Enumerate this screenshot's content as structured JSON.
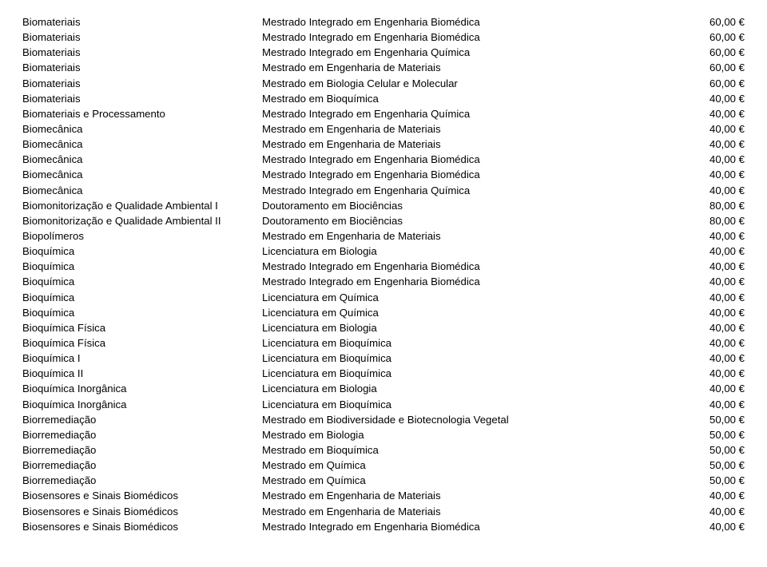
{
  "rows": [
    {
      "c1": "Biomateriais",
      "c2": "Mestrado Integrado em Engenharia Biomédica",
      "c3": "60,00 €"
    },
    {
      "c1": "Biomateriais",
      "c2": "Mestrado Integrado em Engenharia Biomédica",
      "c3": "60,00 €"
    },
    {
      "c1": "Biomateriais",
      "c2": "Mestrado Integrado em Engenharia Química",
      "c3": "60,00 €"
    },
    {
      "c1": "Biomateriais",
      "c2": "Mestrado em Engenharia de Materiais",
      "c3": "60,00 €"
    },
    {
      "c1": "Biomateriais",
      "c2": "Mestrado em Biologia Celular e Molecular",
      "c3": "60,00 €"
    },
    {
      "c1": "Biomateriais",
      "c2": "Mestrado em Bioquímica",
      "c3": "40,00 €"
    },
    {
      "c1": "Biomateriais e Processamento",
      "c2": "Mestrado Integrado em Engenharia Química",
      "c3": "40,00 €"
    },
    {
      "c1": "Biomecânica",
      "c2": "Mestrado em Engenharia de Materiais",
      "c3": "40,00 €"
    },
    {
      "c1": "Biomecânica",
      "c2": "Mestrado em Engenharia de Materiais",
      "c3": "40,00 €"
    },
    {
      "c1": "Biomecânica",
      "c2": "Mestrado Integrado em Engenharia Biomédica",
      "c3": "40,00 €"
    },
    {
      "c1": "Biomecânica",
      "c2": "Mestrado Integrado em Engenharia Biomédica",
      "c3": "40,00 €"
    },
    {
      "c1": "Biomecânica",
      "c2": "Mestrado Integrado em Engenharia Química",
      "c3": "40,00 €"
    },
    {
      "c1": "Biomonitorização e Qualidade Ambiental I",
      "c2": "Doutoramento em Biociências",
      "c3": "80,00 €"
    },
    {
      "c1": "Biomonitorização e Qualidade Ambiental II",
      "c2": "Doutoramento em Biociências",
      "c3": "80,00 €"
    },
    {
      "c1": "Biopolímeros",
      "c2": "Mestrado em Engenharia de Materiais",
      "c3": "40,00 €"
    },
    {
      "c1": "Bioquímica",
      "c2": "Licenciatura em Biologia",
      "c3": "40,00 €"
    },
    {
      "c1": "Bioquímica",
      "c2": "Mestrado Integrado em Engenharia Biomédica",
      "c3": "40,00 €"
    },
    {
      "c1": "Bioquímica",
      "c2": "Mestrado Integrado em Engenharia Biomédica",
      "c3": "40,00 €"
    },
    {
      "c1": "Bioquímica",
      "c2": "Licenciatura em Química",
      "c3": "40,00 €"
    },
    {
      "c1": "Bioquímica",
      "c2": "Licenciatura em Química",
      "c3": "40,00 €"
    },
    {
      "c1": "Bioquímica Física",
      "c2": "Licenciatura em Biologia",
      "c3": "40,00 €"
    },
    {
      "c1": "Bioquímica Física",
      "c2": "Licenciatura em Bioquímica",
      "c3": "40,00 €"
    },
    {
      "c1": "Bioquímica I",
      "c2": "Licenciatura em Bioquímica",
      "c3": "40,00 €"
    },
    {
      "c1": "Bioquímica II",
      "c2": "Licenciatura em Bioquímica",
      "c3": "40,00 €"
    },
    {
      "c1": "Bioquímica Inorgânica",
      "c2": "Licenciatura em Biologia",
      "c3": "40,00 €"
    },
    {
      "c1": "Bioquímica Inorgânica",
      "c2": "Licenciatura em Bioquímica",
      "c3": "40,00 €"
    },
    {
      "c1": "Biorremediação",
      "c2": "Mestrado em Biodiversidade e Biotecnologia Vegetal",
      "c3": "50,00 €"
    },
    {
      "c1": "Biorremediação",
      "c2": "Mestrado em Biologia",
      "c3": "50,00 €"
    },
    {
      "c1": "Biorremediação",
      "c2": "Mestrado em Bioquímica",
      "c3": "50,00 €"
    },
    {
      "c1": "Biorremediação",
      "c2": "Mestrado em Química",
      "c3": "50,00 €"
    },
    {
      "c1": "Biorremediação",
      "c2": "Mestrado em Química",
      "c3": "50,00 €"
    },
    {
      "c1": "Biosensores e Sinais Biomédicos",
      "c2": "Mestrado em Engenharia de Materiais",
      "c3": "40,00 €"
    },
    {
      "c1": "Biosensores e Sinais Biomédicos",
      "c2": "Mestrado em Engenharia de Materiais",
      "c3": "40,00 €"
    },
    {
      "c1": "Biosensores e Sinais Biomédicos",
      "c2": "Mestrado Integrado em Engenharia Biomédica",
      "c3": "40,00 €"
    }
  ]
}
